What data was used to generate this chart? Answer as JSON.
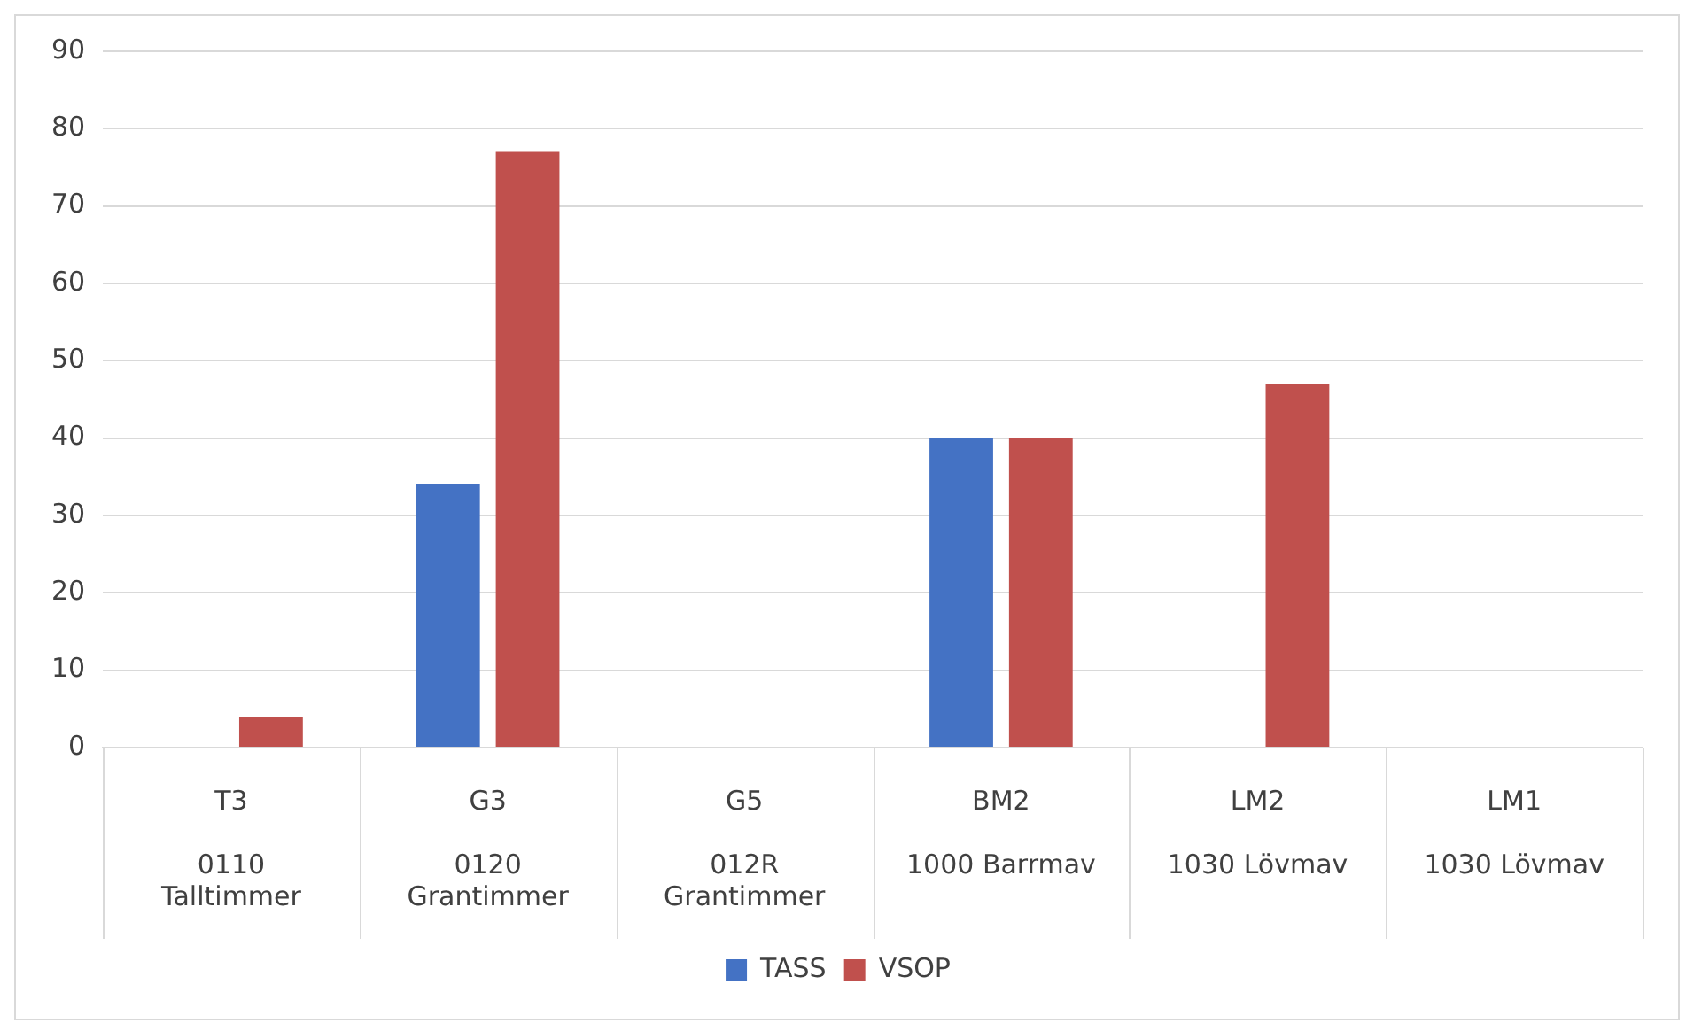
{
  "chart_data": {
    "type": "bar",
    "categories": [
      "T3\n0110 Talltimmer",
      "G3\n0120 Grantimmer",
      "G5\n012R Grantimmer",
      "BM2\n1000 Barrmav",
      "LM2\n1030 Lövmav",
      "LM1\n1030 Lövmav"
    ],
    "series": [
      {
        "name": "TASS",
        "color": "#4472c4",
        "values": [
          0,
          34,
          0,
          40,
          0,
          0
        ]
      },
      {
        "name": "VSOP",
        "color": "#c0504d",
        "values": [
          4,
          77,
          0,
          40,
          47,
          0
        ]
      }
    ],
    "ylim": [
      0,
      90
    ],
    "yticks": [
      0,
      10,
      20,
      30,
      40,
      50,
      60,
      70,
      80,
      90
    ],
    "grid": "y",
    "legend": "bottom"
  }
}
